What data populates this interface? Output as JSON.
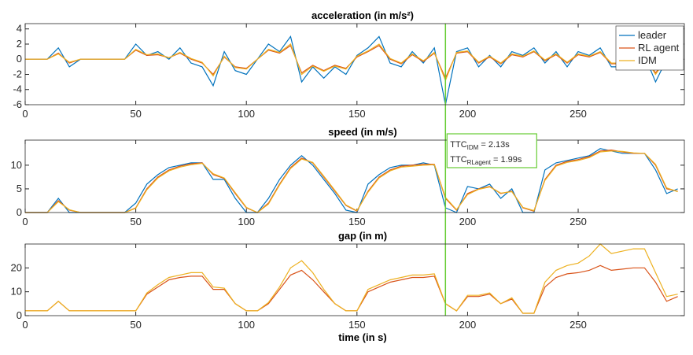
{
  "chart_data": [
    {
      "type": "line",
      "title": "acceleration (in m/s²)",
      "x": [
        0,
        5,
        10,
        15,
        20,
        25,
        30,
        35,
        40,
        45,
        50,
        55,
        60,
        65,
        70,
        75,
        80,
        85,
        90,
        95,
        100,
        105,
        110,
        115,
        120,
        125,
        130,
        135,
        140,
        145,
        150,
        155,
        160,
        165,
        170,
        175,
        180,
        185,
        190,
        195,
        200,
        205,
        210,
        215,
        220,
        225,
        230,
        235,
        240,
        245,
        250,
        255,
        260,
        265,
        270,
        275,
        280,
        285,
        290,
        295
      ],
      "series": [
        {
          "name": "leader",
          "color": "#0072bd",
          "values": [
            0,
            0,
            0,
            1.5,
            -1,
            0,
            0,
            0,
            0,
            0,
            2,
            0.5,
            1,
            0,
            1.5,
            -0.5,
            -1,
            -3.5,
            1,
            -1.5,
            -2,
            0,
            2,
            1,
            3,
            -3,
            -1,
            -2.5,
            -1,
            -2,
            0.5,
            1.5,
            3,
            -0.5,
            -1,
            1,
            -0.5,
            1.5,
            -6,
            1,
            1.5,
            -1,
            0.5,
            -1,
            1,
            0.5,
            1.5,
            -0.5,
            1,
            -1,
            1,
            0.5,
            1.5,
            -1,
            -1,
            0.5,
            0.5,
            -3,
            0,
            1
          ]
        },
        {
          "name": "RL agent",
          "color": "#d95319",
          "values": [
            0,
            0,
            0,
            0.8,
            -0.5,
            0,
            0,
            0,
            0,
            0,
            1.2,
            0.5,
            0.6,
            0.2,
            0.8,
            0,
            -0.5,
            -2,
            0.3,
            -1,
            -1.2,
            0,
            1.2,
            0.8,
            1.8,
            -1.8,
            -0.8,
            -1.5,
            -0.8,
            -1.2,
            0.3,
            1,
            1.8,
            0,
            -0.6,
            0.6,
            -0.3,
            0.8,
            -2.5,
            0.8,
            1,
            -0.5,
            0.3,
            -0.6,
            0.6,
            0.3,
            1,
            -0.2,
            0.6,
            -0.5,
            0.6,
            0.3,
            0.9,
            -0.6,
            -0.6,
            0.3,
            0.3,
            -1.8,
            0,
            0.6
          ]
        },
        {
          "name": "IDM",
          "color": "#edb120",
          "values": [
            0,
            0,
            0,
            0.7,
            -0.4,
            0,
            0,
            0,
            0,
            0,
            1.3,
            0.6,
            0.7,
            0.2,
            0.9,
            0.1,
            -0.4,
            -2.2,
            0.4,
            -1.1,
            -1.3,
            0,
            1.3,
            0.9,
            2,
            -2,
            -0.9,
            -1.6,
            -0.9,
            -1.3,
            0.4,
            1.1,
            2,
            0.1,
            -0.5,
            0.7,
            -0.2,
            0.9,
            -2.8,
            0.9,
            1.1,
            -0.4,
            0.4,
            -0.5,
            0.7,
            0.4,
            1.1,
            -0.1,
            0.7,
            -0.4,
            0.7,
            0.4,
            1,
            -0.5,
            -0.5,
            0.4,
            0.4,
            -2,
            0.1,
            0.7
          ]
        }
      ],
      "xlim": [
        0,
        298
      ],
      "xticks": [
        0,
        50,
        100,
        150,
        200,
        250
      ],
      "ylim": [
        -6,
        4.7
      ],
      "yticks": [
        -6,
        -4,
        -2,
        0,
        2,
        4
      ],
      "legend": "northeast",
      "vline": {
        "x": 190,
        "color": "#66cc33"
      }
    },
    {
      "type": "line",
      "title": "speed (in m/s)",
      "x": [
        0,
        5,
        10,
        15,
        20,
        25,
        30,
        35,
        40,
        45,
        50,
        55,
        60,
        65,
        70,
        75,
        80,
        85,
        90,
        95,
        100,
        105,
        110,
        115,
        120,
        125,
        130,
        135,
        140,
        145,
        150,
        155,
        160,
        165,
        170,
        175,
        180,
        185,
        190,
        195,
        200,
        205,
        210,
        215,
        220,
        225,
        230,
        235,
        240,
        245,
        250,
        255,
        260,
        265,
        270,
        275,
        280,
        285,
        290,
        295
      ],
      "series": [
        {
          "name": "leader",
          "color": "#0072bd",
          "values": [
            0,
            0,
            0,
            3,
            0,
            0,
            0,
            0,
            0,
            0,
            2,
            6,
            8,
            9.5,
            10,
            10.5,
            10.5,
            7,
            7,
            3,
            0,
            0,
            3,
            7,
            10,
            12,
            10,
            7,
            4,
            0.5,
            0,
            6,
            8,
            9.5,
            10,
            10,
            10.5,
            10,
            1,
            0,
            5.5,
            5,
            6,
            3,
            5,
            0,
            0,
            9,
            10.5,
            11,
            11.5,
            12,
            13.5,
            13,
            12.5,
            12.5,
            12.5,
            9,
            4,
            5
          ]
        },
        {
          "name": "RL agent",
          "color": "#d95319",
          "values": [
            0,
            0,
            0,
            2.5,
            0.5,
            0,
            0,
            0,
            0,
            0,
            1,
            5,
            7.5,
            9,
            9.8,
            10.3,
            10.5,
            8,
            7.2,
            4,
            1,
            0,
            2,
            6,
            9.5,
            11.5,
            10.5,
            7.5,
            4.5,
            1.5,
            0.3,
            4.5,
            7.5,
            9,
            9.8,
            10,
            10.2,
            10.2,
            3,
            0.5,
            4,
            5,
            5.5,
            4,
            4.5,
            1,
            0.3,
            7,
            10,
            10.8,
            11.2,
            11.8,
            13,
            13.2,
            12.8,
            12.5,
            12.5,
            10,
            5,
            4.5
          ]
        },
        {
          "name": "IDM",
          "color": "#edb120",
          "values": [
            0,
            0,
            0,
            2.3,
            0.6,
            0,
            0,
            0,
            0,
            0,
            0.9,
            4.8,
            7.3,
            8.8,
            9.6,
            10.1,
            10.4,
            8.2,
            7.3,
            4.2,
            1.1,
            0,
            1.8,
            5.8,
            9.3,
            11.3,
            10.6,
            7.7,
            4.7,
            1.6,
            0.4,
            4.3,
            7.3,
            8.8,
            9.6,
            9.8,
            10,
            10.1,
            3.2,
            0.6,
            3.8,
            4.9,
            5.4,
            4.1,
            4.4,
            1.1,
            0.4,
            6.8,
            9.8,
            10.6,
            11,
            11.6,
            12.8,
            13,
            12.9,
            12.6,
            12.5,
            10.2,
            5.2,
            4.4
          ]
        }
      ],
      "xlim": [
        0,
        298
      ],
      "xticks": [
        0,
        50,
        100,
        150,
        200,
        250
      ],
      "ylim": [
        0,
        15.3
      ],
      "yticks": [
        0,
        5,
        10
      ],
      "vline": {
        "x": 190,
        "color": "#66cc33"
      },
      "annotation": [
        {
          "text": "TTC",
          "subscript": "IDM",
          "suffix": " = 2.13s"
        },
        {
          "text": "TTC",
          "subscript": "RLagent",
          "suffix": " = 1.99s"
        }
      ]
    },
    {
      "type": "line",
      "title": "gap (in m)",
      "xlabel": "time (in s)",
      "x": [
        0,
        5,
        10,
        15,
        20,
        25,
        30,
        35,
        40,
        45,
        50,
        55,
        60,
        65,
        70,
        75,
        80,
        85,
        90,
        95,
        100,
        105,
        110,
        115,
        120,
        125,
        130,
        135,
        140,
        145,
        150,
        155,
        160,
        165,
        170,
        175,
        180,
        185,
        190,
        195,
        200,
        205,
        210,
        215,
        220,
        225,
        230,
        235,
        240,
        245,
        250,
        255,
        260,
        265,
        270,
        275,
        280,
        285,
        290,
        295
      ],
      "series": [
        {
          "name": "RL agent",
          "color": "#d95319",
          "values": [
            2,
            2,
            2,
            6,
            2,
            2,
            2,
            2,
            2,
            2,
            2,
            9,
            12,
            15,
            16,
            16.5,
            16.5,
            11,
            11,
            5,
            2,
            2,
            5,
            11,
            17,
            19,
            15,
            10,
            5,
            2,
            2,
            10,
            12,
            14,
            15,
            16,
            16,
            16.5,
            5,
            2,
            8,
            8,
            9,
            5,
            7,
            1,
            1,
            12,
            16,
            17.5,
            18,
            19,
            21,
            19,
            19.5,
            20,
            20,
            14,
            6,
            8
          ]
        },
        {
          "name": "IDM",
          "color": "#edb120",
          "values": [
            2,
            2,
            2,
            6,
            2,
            2,
            2,
            2,
            2,
            2,
            2,
            9.5,
            13,
            16,
            17,
            18,
            18,
            12,
            11.5,
            5,
            2,
            2,
            5.5,
            12,
            20,
            23,
            18,
            11,
            5,
            2,
            2,
            11,
            13,
            15,
            16,
            17,
            17,
            17.5,
            5,
            2,
            8.5,
            8.5,
            9.5,
            5,
            7.5,
            1,
            1,
            14,
            19,
            21,
            22,
            25,
            30,
            26,
            27,
            28,
            28,
            18,
            8,
            9
          ]
        }
      ],
      "xlim": [
        0,
        298
      ],
      "xticks": [
        0,
        50,
        100,
        150,
        200,
        250
      ],
      "ylim": [
        0,
        30
      ],
      "yticks": [
        0,
        10,
        20
      ],
      "vline": {
        "x": 190,
        "color": "#66cc33"
      }
    }
  ]
}
